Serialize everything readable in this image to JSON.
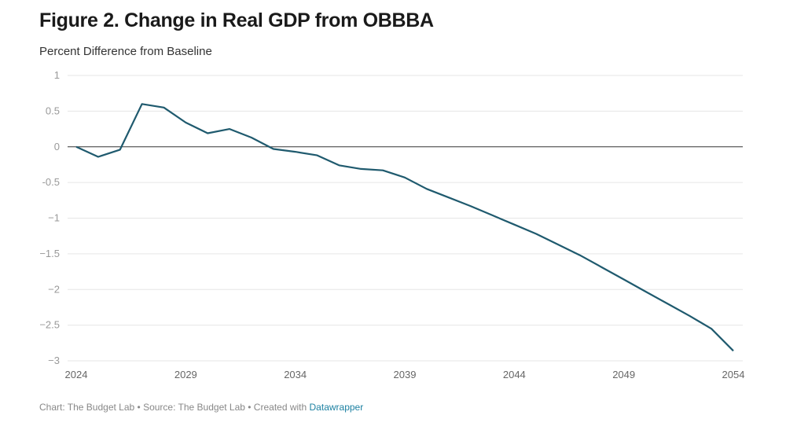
{
  "chart_data": {
    "type": "line",
    "title": "Figure 2. Change in Real GDP from OBBBA",
    "subtitle": "Percent Difference from Baseline",
    "xlabel": "",
    "ylabel": "",
    "ylim": [
      -3,
      1
    ],
    "xlim": [
      2024,
      2054
    ],
    "yticks": [
      1,
      0.5,
      0,
      -0.5,
      -1,
      -1.5,
      -2,
      -2.5,
      -3
    ],
    "ytick_labels": [
      "1",
      "0.5",
      "0",
      "-0.5",
      "−1",
      "−1.5",
      "−2",
      "−2.5",
      "−3"
    ],
    "xticks": [
      2024,
      2029,
      2034,
      2039,
      2044,
      2049,
      2054
    ],
    "xtick_labels": [
      "2024",
      "2029",
      "2034",
      "2039",
      "2044",
      "2049",
      "2054"
    ],
    "grid": true,
    "line_color": "#1f5a6e",
    "x": [
      2024,
      2025,
      2026,
      2027,
      2028,
      2029,
      2030,
      2031,
      2032,
      2033,
      2034,
      2035,
      2036,
      2037,
      2038,
      2039,
      2040,
      2041,
      2042,
      2043,
      2044,
      2045,
      2046,
      2047,
      2048,
      2049,
      2050,
      2051,
      2052,
      2053,
      2054
    ],
    "series": [
      {
        "values": [
          0,
          -0.14,
          -0.04,
          0.6,
          0.55,
          0.34,
          0.19,
          0.25,
          0.13,
          -0.03,
          -0.07,
          -0.12,
          -0.26,
          -0.31,
          -0.33,
          -0.43,
          -0.59,
          -0.71,
          -0.83,
          -0.96,
          -1.09,
          -1.22,
          -1.37,
          -1.52,
          -1.69,
          -1.86,
          -2.03,
          -2.2,
          -2.37,
          -2.55,
          -2.86
        ]
      }
    ]
  },
  "footer": {
    "text": "Chart: The Budget Lab • Source: The Budget Lab • Created with ",
    "link": "Datawrapper",
    "link_color": "#1d81a2"
  }
}
